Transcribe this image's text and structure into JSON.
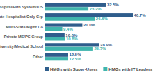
{
  "chart_data": {
    "type": "bar",
    "orientation": "horizontal",
    "categories": [
      "Hospital/Hlth System/IDS",
      "Private Hospitalist Only Grp",
      "Multi-State Mgmt Co",
      "Private MS/PC Group",
      "University/Medical School",
      "Other"
    ],
    "series": [
      {
        "name": "HMGs with Super-Users",
        "color": "#2f5d8c",
        "values": [
          32.5,
          46.7,
          20.0,
          10.6,
          28.9,
          12.5
        ],
        "value_labels": [
          "32.5%",
          "46.7%",
          "20.0%",
          "10.6%",
          "28.9%",
          "12.5%"
        ]
      },
      {
        "name": "HMGs with IT Leaders",
        "color": "#3fb5ad",
        "values": [
          23.2,
          26.6,
          9.4,
          10.8,
          25.7,
          12.5
        ],
        "value_labels": [
          "23.2%",
          "26.6%",
          "9.4%",
          "10.8%",
          "25.7%",
          "12.5%"
        ]
      }
    ],
    "xlim": [
      0,
      50
    ],
    "data_labels": true,
    "tick_labels": "y",
    "legend": "bottom"
  }
}
